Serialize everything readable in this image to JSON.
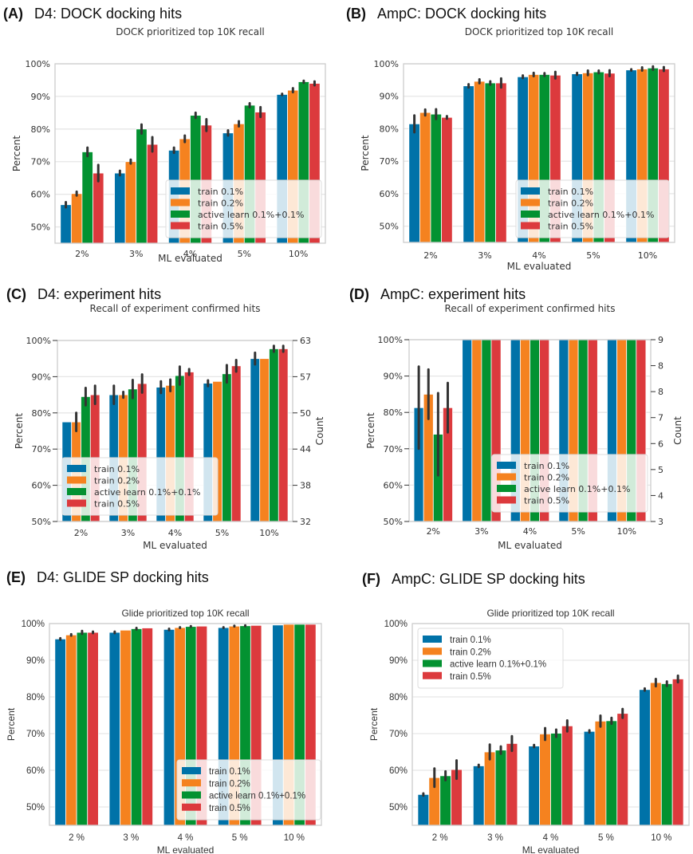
{
  "colors": {
    "train_0_1": "#0072a8",
    "train_0_2": "#f5821f",
    "active_learn": "#039231",
    "train_0_5": "#dc3a3d",
    "grid": "#e6e6e6",
    "frame": "#cccccc",
    "errorbar": "#333333"
  },
  "legend_labels": [
    "train 0.1%",
    "train 0.2%",
    "active learn 0.1%+0.1%",
    "train 0.5%"
  ],
  "chart_data": [
    {
      "id": "A",
      "panel_letter": "(A)",
      "panel_title": "D4: DOCK docking hits",
      "type": "bar",
      "title": "DOCK prioritized top 10K recall",
      "xlabel": "ML evaluated",
      "ylabel": "Percent",
      "ylim": [
        45,
        100
      ],
      "yticks": [
        50,
        60,
        70,
        80,
        90,
        100
      ],
      "ytick_labels": [
        "50%",
        "60%",
        "70%",
        "80%",
        "90%",
        "100%"
      ],
      "categories": [
        "2%",
        "3%",
        "4%",
        "5%",
        "10%"
      ],
      "legend": "lower-right",
      "grid": true,
      "series": [
        {
          "name": "train 0.1%",
          "values": [
            56.8,
            66.5,
            73.5,
            78.8,
            90.6
          ],
          "err": [
            0.8,
            0.7,
            0.8,
            0.8,
            0.2
          ]
        },
        {
          "name": "train 0.2%",
          "values": [
            60.2,
            70.0,
            77.0,
            81.6,
            91.9
          ],
          "err": [
            0.6,
            0.6,
            1.0,
            0.8,
            0.6
          ]
        },
        {
          "name": "active learn 0.1%+0.1%",
          "values": [
            73.0,
            80.0,
            84.2,
            87.3,
            94.5
          ],
          "err": [
            1.3,
            1.4,
            0.8,
            0.6,
            0.3
          ]
        },
        {
          "name": "train 0.5%",
          "values": [
            66.5,
            75.3,
            81.2,
            85.2,
            94.0
          ],
          "err": [
            2.5,
            2.2,
            1.8,
            1.5,
            0.6
          ]
        }
      ]
    },
    {
      "id": "B",
      "panel_letter": "(B)",
      "panel_title": "AmpC: DOCK docking hits",
      "type": "bar",
      "title": "DOCK prioritized top 10K recall",
      "xlabel": "ML evaluated",
      "ylabel": "Percent",
      "ylim": [
        45,
        100
      ],
      "yticks": [
        50,
        60,
        70,
        80,
        90,
        100
      ],
      "ytick_labels": [
        "50%",
        "60%",
        "70%",
        "80%",
        "90%",
        "100%"
      ],
      "categories": [
        "2%",
        "3%",
        "4%",
        "5%",
        "10%"
      ],
      "legend": "lower-right",
      "grid": true,
      "series": [
        {
          "name": "train 0.1%",
          "values": [
            81.5,
            93.2,
            96.0,
            96.9,
            98.1
          ],
          "err": [
            2.6,
            0.5,
            0.4,
            0.3,
            0.2
          ]
        },
        {
          "name": "train 0.2%",
          "values": [
            85.0,
            94.6,
            96.7,
            97.2,
            98.4
          ],
          "err": [
            0.9,
            0.6,
            0.5,
            0.7,
            0.5
          ]
        },
        {
          "name": "active learn 0.1%+0.1%",
          "values": [
            84.5,
            94.1,
            96.7,
            97.5,
            98.7
          ],
          "err": [
            1.5,
            0.5,
            0.4,
            0.4,
            0.5
          ]
        },
        {
          "name": "train 0.5%",
          "values": [
            83.5,
            94.1,
            96.5,
            97.1,
            98.4
          ],
          "err": [
            0.4,
            1.4,
            1.0,
            0.9,
            0.6
          ]
        }
      ]
    },
    {
      "id": "C",
      "panel_letter": "(C)",
      "panel_title": "D4: experiment hits",
      "type": "bar",
      "title": "Recall of experiment confirmed hits",
      "xlabel": "ML evaluated",
      "ylabel": "Percent",
      "ylabel_right": "Count",
      "ylim": [
        50,
        100
      ],
      "yticks": [
        50,
        60,
        70,
        80,
        90,
        100
      ],
      "ytick_labels": [
        "50%",
        "60%",
        "70%",
        "80%",
        "90%",
        "100%"
      ],
      "ytick_labels_right": [
        "32",
        "38",
        "44",
        "50",
        "57",
        "63"
      ],
      "categories": [
        "2%",
        "3%",
        "4%",
        "5%",
        "10%"
      ],
      "legend": "lower-left",
      "grid": true,
      "series": [
        {
          "name": "train 0.1%",
          "values": [
            77.5,
            85.0,
            87.1,
            88.2,
            95.0
          ],
          "err": [
            0,
            2.5,
            1.6,
            0.8,
            1.6
          ]
        },
        {
          "name": "train 0.2%",
          "values": [
            77.5,
            85.0,
            87.6,
            88.7,
            95.0
          ],
          "err": [
            2.5,
            0.8,
            1.6,
            0,
            0
          ]
        },
        {
          "name": "active learn 0.1%+0.1%",
          "values": [
            84.5,
            86.6,
            90.3,
            90.8,
            97.7
          ],
          "err": [
            2.4,
            2.5,
            2.5,
            2.4,
            0.8
          ]
        },
        {
          "name": "train 0.5%",
          "values": [
            85.0,
            88.1,
            91.3,
            93.0,
            97.7
          ],
          "err": [
            2.5,
            2.5,
            0.8,
            1.6,
            0.8
          ]
        }
      ]
    },
    {
      "id": "D",
      "panel_letter": "(D)",
      "panel_title": "AmpC: experiment hits",
      "type": "bar",
      "title": "Recall of experiment confirmed hits",
      "xlabel": "ML evaluated",
      "ylabel": "Percent",
      "ylabel_right": "Count",
      "ylim": [
        50,
        100
      ],
      "yticks": [
        50,
        60,
        70,
        80,
        90,
        100
      ],
      "ytick_labels": [
        "50%",
        "60%",
        "70%",
        "80%",
        "90%",
        "100%"
      ],
      "yticks_right_count": [
        3,
        4,
        5,
        6,
        7,
        8,
        8,
        9
      ],
      "ytick_labels_right": [
        "3",
        "4",
        "5",
        "6",
        "7",
        "8",
        "8",
        "9"
      ],
      "categories": [
        "2%",
        "3%",
        "4%",
        "5%",
        "10%"
      ],
      "legend": "lower-right",
      "grid": true,
      "series": [
        {
          "name": "train 0.1%",
          "values": [
            81.3,
            100,
            100,
            100,
            100
          ],
          "err": [
            11.3,
            0,
            0,
            0,
            0
          ]
        },
        {
          "name": "train 0.2%",
          "values": [
            85.0,
            100,
            100,
            100,
            100
          ],
          "err": [
            6.8,
            0,
            0,
            0,
            0
          ]
        },
        {
          "name": "active learn 0.1%+0.1%",
          "values": [
            74.0,
            100,
            100,
            100,
            100
          ],
          "err": [
            11.3,
            0,
            0,
            0,
            0
          ]
        },
        {
          "name": "train 0.5%",
          "values": [
            81.3,
            100,
            100,
            100,
            100
          ],
          "err": [
            6.8,
            0,
            0,
            0,
            0
          ]
        }
      ]
    },
    {
      "id": "E",
      "panel_letter": "(E)",
      "panel_title": "D4: GLIDE SP docking hits",
      "type": "bar",
      "title": "Glide prioritized top 10K recall",
      "xlabel": "ML evaluated",
      "ylabel": "Percent",
      "ylim": [
        45,
        100
      ],
      "yticks": [
        50,
        60,
        70,
        80,
        90,
        100
      ],
      "ytick_labels": [
        "50%",
        "60%",
        "70%",
        "80%",
        "90%",
        "100%"
      ],
      "categories": [
        "2 %",
        "3 %",
        "4 %",
        "5 %",
        "10 %"
      ],
      "legend": "lower-right",
      "grid": true,
      "series": [
        {
          "name": "train 0.1%",
          "values": [
            95.8,
            97.6,
            98.4,
            98.9,
            99.6
          ],
          "err": [
            0.2,
            0.2,
            0.2,
            0.1,
            0
          ]
        },
        {
          "name": "train 0.2%",
          "values": [
            96.9,
            98.2,
            98.9,
            99.3,
            99.8
          ],
          "err": [
            0.2,
            0,
            0.1,
            0.1,
            0
          ]
        },
        {
          "name": "active learn 0.1%+0.1%",
          "values": [
            97.6,
            98.6,
            99.2,
            99.4,
            99.8
          ],
          "err": [
            0.4,
            0.2,
            0.1,
            0.1,
            0
          ]
        },
        {
          "name": "train 0.5%",
          "values": [
            97.6,
            98.8,
            99.3,
            99.5,
            99.8
          ],
          "err": [
            0.2,
            0,
            0,
            0,
            0
          ]
        }
      ]
    },
    {
      "id": "F",
      "panel_letter": "(F)",
      "panel_title": "AmpC: GLIDE SP docking hits",
      "type": "bar",
      "title": "Glide prioritized top 10K recall",
      "xlabel": "ML evaluated",
      "ylabel": "Percent",
      "ylim": [
        45,
        100
      ],
      "yticks": [
        50,
        60,
        70,
        80,
        90,
        100
      ],
      "ytick_labels": [
        "50%",
        "60%",
        "70%",
        "80%",
        "90%",
        "100%"
      ],
      "categories": [
        "2 %",
        "3 %",
        "4 %",
        "5 %",
        "10 %"
      ],
      "legend": "upper-left",
      "grid": true,
      "series": [
        {
          "name": "train 0.1%",
          "values": [
            53.4,
            61.2,
            66.6,
            70.6,
            82.0
          ],
          "err": [
            0.3,
            0.3,
            0.3,
            0.3,
            0.3
          ]
        },
        {
          "name": "train 0.2%",
          "values": [
            58.0,
            65.0,
            69.9,
            73.4,
            83.9
          ],
          "err": [
            2.5,
            2.0,
            1.6,
            1.5,
            1.0
          ]
        },
        {
          "name": "active learn 0.1%+0.1%",
          "values": [
            58.5,
            65.5,
            70.1,
            73.5,
            83.6
          ],
          "err": [
            1.2,
            1.0,
            1.0,
            0.8,
            0.6
          ]
        },
        {
          "name": "train 0.5%",
          "values": [
            60.2,
            67.3,
            72.1,
            75.5,
            84.9
          ],
          "err": [
            2.5,
            2.0,
            1.5,
            1.2,
            0.9
          ]
        }
      ]
    }
  ]
}
